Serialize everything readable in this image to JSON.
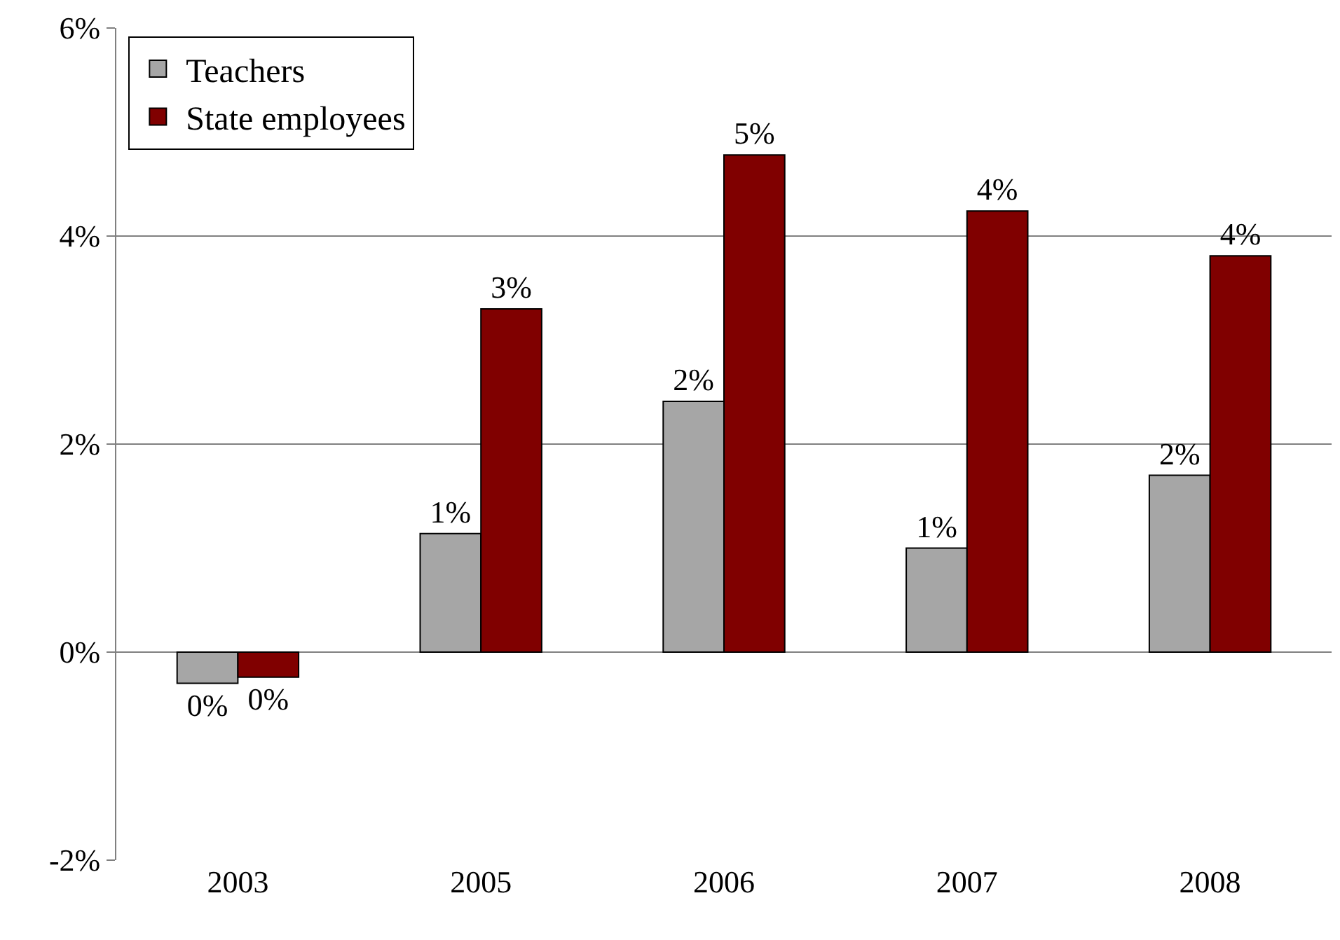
{
  "chart_data": {
    "type": "bar",
    "categories": [
      "2003",
      "2005",
      "2006",
      "2007",
      "2008"
    ],
    "series": [
      {
        "name": "Teachers",
        "color": "#a6a6a6",
        "values": [
          -0.3,
          1.14,
          2.41,
          1.0,
          1.7
        ],
        "value_labels": [
          "0%",
          "1%",
          "2%",
          "1%",
          "2%"
        ]
      },
      {
        "name": "State employees",
        "color": "#800000",
        "values": [
          -0.24,
          3.3,
          4.78,
          4.24,
          3.81
        ],
        "value_labels": [
          "0%",
          "3%",
          "5%",
          "4%",
          "4%"
        ]
      }
    ],
    "ylim": [
      -2,
      6
    ],
    "yticks": [
      {
        "value": -2,
        "label": "-2%"
      },
      {
        "value": 0,
        "label": "0%"
      },
      {
        "value": 2,
        "label": "2%"
      },
      {
        "value": 4,
        "label": "4%"
      },
      {
        "value": 6,
        "label": "6%"
      }
    ],
    "grid": "y",
    "legend": "top left"
  }
}
